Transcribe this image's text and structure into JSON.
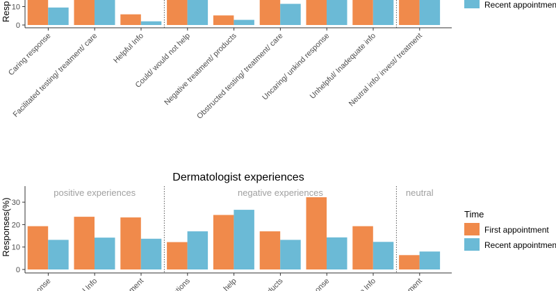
{
  "chart_data": [
    {
      "type": "bar",
      "title": "",
      "xlabel": "",
      "ylabel": "Responses(%)",
      "ylim": [
        0,
        14
      ],
      "yticks": [
        0,
        10
      ],
      "legend_position": "right",
      "categories": [
        "Caring response",
        "Facilitated testing/ treatment/ care",
        "Helpful Info",
        "Could/ would not help",
        "Negative treatment/ products",
        "Obstructed testing/ treatment/ care",
        "Uncaring/ unkind response",
        "Unhelpful/ Inadequate info",
        "Neutral info/ invest/ treatment"
      ],
      "series": [
        {
          "name": "First appointment",
          "color": "#F08A4B",
          "values": [
            14,
            14,
            5.8,
            14,
            5.2,
            14,
            14,
            14,
            14
          ]
        },
        {
          "name": "Recent appointment",
          "color": "#6BBAD6",
          "values": [
            9.5,
            14,
            2,
            14,
            2.8,
            11.5,
            14,
            14,
            14
          ]
        }
      ],
      "separators_after": [
        2,
        7
      ]
    },
    {
      "type": "bar",
      "title": "Dermatologist experiences",
      "xlabel": "",
      "ylabel": "Responses(%)",
      "ylim": [
        0,
        35
      ],
      "yticks": [
        0,
        10,
        20,
        30
      ],
      "legend_title": "Time",
      "legend_position": "right",
      "group_labels": [
        "positive experiences",
        "negative experiences",
        "neutral"
      ],
      "categories": [
        "Caring response",
        "Facilitated testing/ treatment/ care",
        "Helpful Info",
        "Could/ would not help",
        "Negative treatment/ products",
        "Obstructed testing/ treatment/ care",
        "Uncaring/ unkind response",
        "Unhelpful/ Inadequate info",
        "Neutral info/ invest/ treatment"
      ],
      "series": [
        {
          "name": "First appointment",
          "color": "#F08A4B",
          "values": [
            19.3,
            23.5,
            23.2,
            12.2,
            24.3,
            17.0,
            32.2,
            19.3,
            6.4
          ]
        },
        {
          "name": "Recent appointment",
          "color": "#6BBAD6",
          "values": [
            13.2,
            14.2,
            13.7,
            17.0,
            26.6,
            13.2,
            14.3,
            12.3,
            8.0
          ]
        }
      ],
      "separators_after": [
        2,
        7
      ]
    }
  ],
  "legend": {
    "title": "Time",
    "items": [
      "First appointment",
      "Recent appointment"
    ],
    "top_items": [
      "Recent appointment"
    ]
  },
  "top_ylabel_visible": "Resp",
  "bottom_tick_visible": [
    "onse",
    "l Info",
    "ment",
    "ations",
    "help",
    "ducts",
    "onse",
    "p Info",
    "ment"
  ]
}
